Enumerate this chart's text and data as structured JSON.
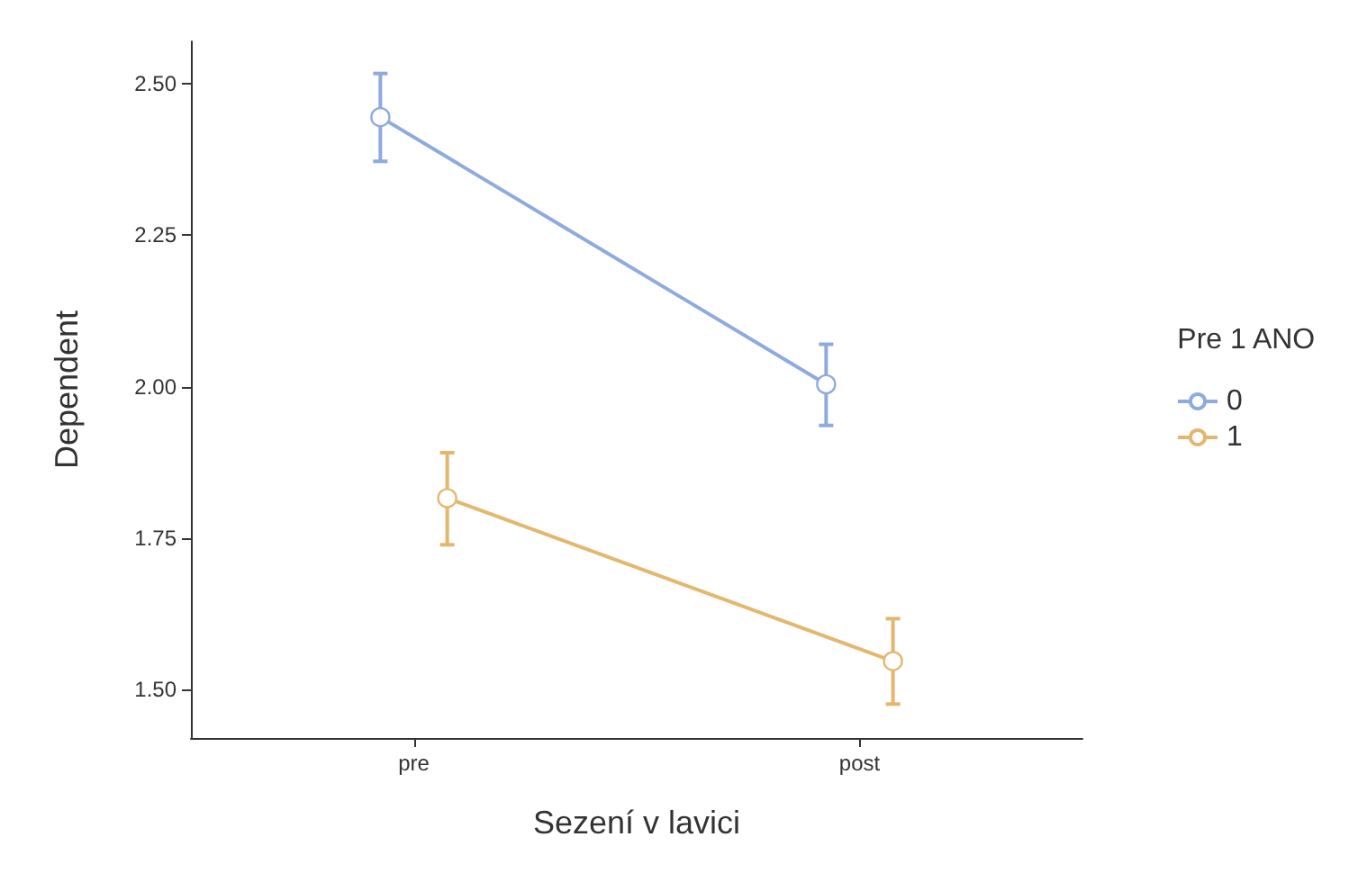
{
  "chart_data": {
    "type": "line",
    "xlabel": "Sezení v lavici",
    "ylabel": "Dependent",
    "legend_title": "Pre 1 ANO",
    "categories": [
      "pre",
      "post"
    ],
    "series": [
      {
        "name": "0",
        "color": "#8eaadf",
        "values": [
          2.445,
          2.004
        ],
        "errors": [
          [
            2.372,
            2.517
          ],
          [
            1.936,
            2.07
          ]
        ]
      },
      {
        "name": "1",
        "color": "#e3b76e",
        "values": [
          1.816,
          1.547
        ],
        "errors": [
          [
            1.739,
            1.891
          ],
          [
            1.476,
            1.617
          ]
        ]
      }
    ],
    "ylim": [
      1.42,
      2.57
    ],
    "yticks": [
      {
        "value": 1.5,
        "label": "1.50"
      },
      {
        "value": 1.75,
        "label": "1.75"
      },
      {
        "value": 2,
        "label": "2.00"
      },
      {
        "value": 2.25,
        "label": "2.25"
      },
      {
        "value": 2.5,
        "label": "2.50"
      }
    ],
    "grid": false,
    "legend": "right",
    "marker": "circle",
    "line_style": "solid"
  }
}
